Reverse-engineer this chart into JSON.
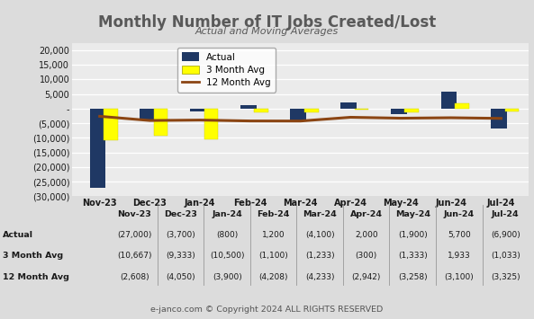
{
  "title": "Monthly Number of IT Jobs Created/Lost",
  "subtitle": "Actual and Moving Averages",
  "months": [
    "Nov-23",
    "Dec-23",
    "Jan-24",
    "Feb-24",
    "Mar-24",
    "Apr-24",
    "May-24",
    "Jun-24",
    "Jul-24"
  ],
  "actual": [
    -27000,
    -3700,
    -800,
    1200,
    -4100,
    2000,
    -1900,
    5700,
    -6900
  ],
  "three_month": [
    -10667,
    -9333,
    -10500,
    -1100,
    -1233,
    -300,
    -1333,
    1933,
    -1033
  ],
  "twelve_month": [
    -2608,
    -4050,
    -3900,
    -4208,
    -4233,
    -2942,
    -3258,
    -3100,
    -3325
  ],
  "actual_labels": [
    "(27,000)",
    "(3,700)",
    "(800)",
    "1,200",
    "(4,100)",
    "2,000",
    "(1,900)",
    "5,700",
    "(6,900)"
  ],
  "three_month_labels": [
    "(10,667)",
    "(9,333)",
    "(10,500)",
    "(1,100)",
    "(1,233)",
    "(300)",
    "(1,333)",
    "1,933",
    "(1,033)"
  ],
  "twelve_month_labels": [
    "(2,608)",
    "(4,050)",
    "(3,900)",
    "(4,208)",
    "(4,233)",
    "(2,942)",
    "(3,258)",
    "(3,100)",
    "(3,325)"
  ],
  "bar_actual_color": "#1f3864",
  "bar_3mo_color": "#ffff00",
  "line_12mo_color": "#8B4513",
  "ylim": [
    -30000,
    22500
  ],
  "yticks": [
    -30000,
    -25000,
    -20000,
    -15000,
    -10000,
    -5000,
    0,
    5000,
    10000,
    15000,
    20000
  ],
  "background_color": "#dcdcdc",
  "plot_bg_color": "#ebebeb",
  "footer": "e-janco.com © Copyright 2024 ALL RIGHTS RESERVED",
  "row_labels": [
    "Actual",
    "3 Month Avg",
    "12 Month Avg"
  ],
  "title_color": "#595959",
  "subtitle_color": "#595959",
  "table_text_color": "#1a1a1a"
}
